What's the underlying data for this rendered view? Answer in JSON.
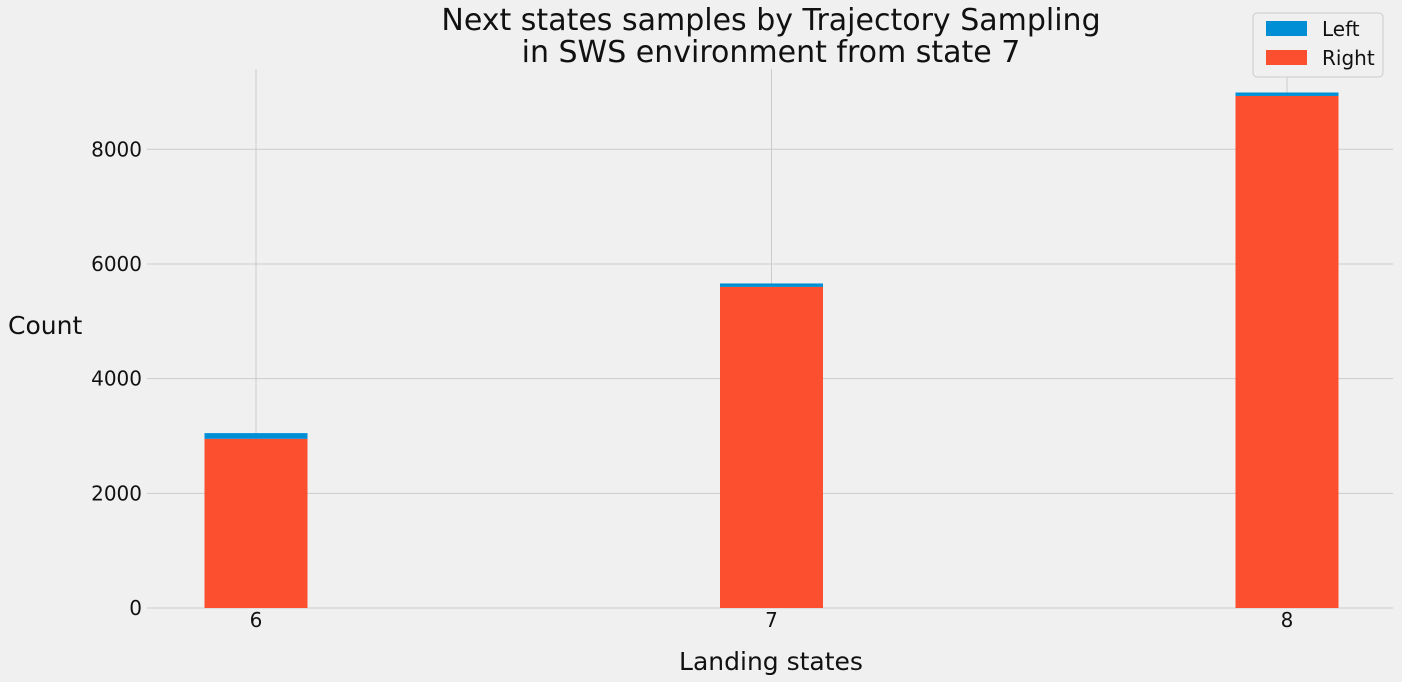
{
  "chart_data": {
    "type": "bar",
    "stacked": true,
    "title": [
      "Next states samples by Trajectory Sampling",
      "in SWS environment from state 7"
    ],
    "xlabel": "Landing states",
    "ylabel": "Count",
    "categories": [
      "6",
      "7",
      "8"
    ],
    "series": [
      {
        "name": "Right",
        "color": "#fc4f30",
        "values": [
          2950,
          5600,
          8930
        ]
      },
      {
        "name": "Left",
        "color": "#008fd5",
        "values": [
          100,
          60,
          60
        ]
      }
    ],
    "ylim": [
      0,
      9400
    ],
    "yticks": [
      0,
      2000,
      4000,
      6000,
      8000
    ],
    "grid": true,
    "legend_position": "top-right",
    "legend_order": [
      "Left",
      "Right"
    ],
    "background": "#f0f0f0"
  }
}
